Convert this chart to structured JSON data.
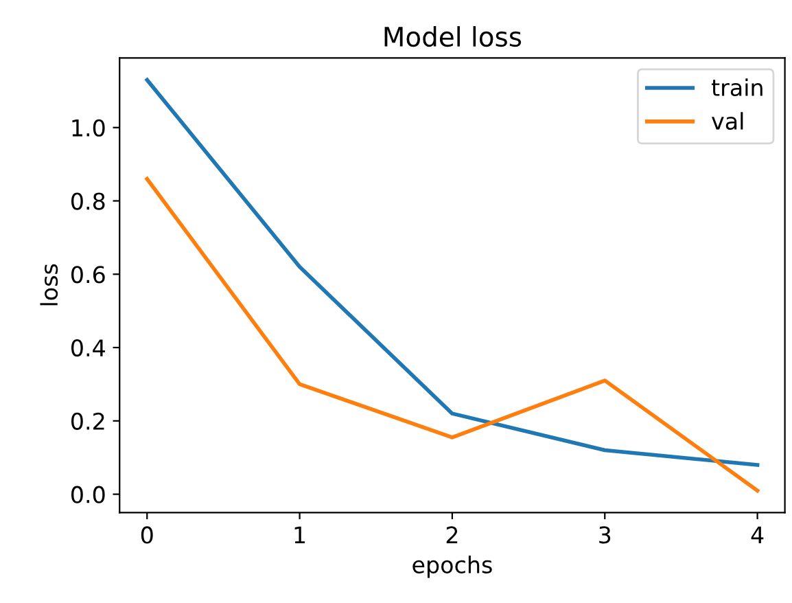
{
  "chart_data": {
    "type": "line",
    "title": "Model loss",
    "xlabel": "epochs",
    "ylabel": "loss",
    "x": [
      0,
      1,
      2,
      3,
      4
    ],
    "series": [
      {
        "name": "train",
        "color": "#1f77b4",
        "values": [
          1.13,
          0.62,
          0.22,
          0.12,
          0.08
        ]
      },
      {
        "name": "val",
        "color": "#ff7f0e",
        "values": [
          0.86,
          0.3,
          0.155,
          0.31,
          0.01
        ]
      }
    ],
    "xlim": [
      -0.18,
      4.18
    ],
    "ylim": [
      -0.05,
      1.19
    ],
    "xticks": [
      0,
      1,
      2,
      3,
      4
    ],
    "yticks": [
      {
        "value": 0,
        "label": "0.0"
      },
      0.2,
      0.4,
      0.6,
      0.8,
      {
        "value": 1,
        "label": "1.0"
      }
    ],
    "legend": "top right",
    "grid": false
  }
}
